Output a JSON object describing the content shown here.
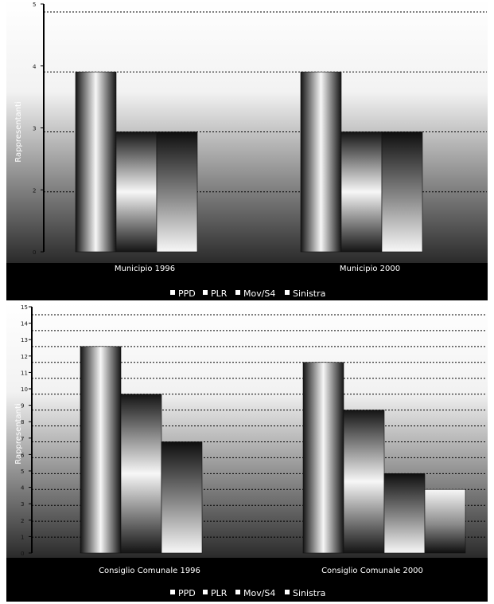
{
  "colors": {
    "background_top": "#ffffff",
    "background_bottom": "#2a2a2a",
    "gridline": "#000000",
    "legend_band": "#000000",
    "label_text": "#ffffff"
  },
  "chart_data": [
    {
      "type": "bar",
      "ylabel": "Rappresentanti",
      "categories": [
        "Municipio 1996",
        "Municipio 2000"
      ],
      "series": [
        {
          "name": "PPD",
          "values": [
            3,
            3
          ]
        },
        {
          "name": "PLR",
          "values": [
            2,
            2
          ]
        },
        {
          "name": "Mov/S4",
          "values": [
            2,
            2
          ]
        },
        {
          "name": "Sinistra",
          "values": [
            0,
            0
          ]
        }
      ],
      "ylim": [
        0,
        4
      ],
      "yticks": [
        "0",
        "2",
        "3",
        "4",
        "5"
      ],
      "grid": true,
      "legend": "bottom"
    },
    {
      "type": "bar",
      "ylabel": "Rappresentanti",
      "categories": [
        "Consiglio Comunale 1996",
        "Consiglio Comunale 2000"
      ],
      "series": [
        {
          "name": "PPD",
          "values": [
            13,
            12
          ]
        },
        {
          "name": "PLR",
          "values": [
            10,
            9
          ]
        },
        {
          "name": "Mov/S4",
          "values": [
            7,
            5
          ]
        },
        {
          "name": "Sinistra",
          "values": [
            0,
            4
          ]
        }
      ],
      "ylim": [
        0,
        15
      ],
      "yticks": [
        "0",
        "1",
        "2",
        "3",
        "4",
        "5",
        "6",
        "7",
        "8",
        "9",
        "10",
        "11",
        "12",
        "13",
        "14",
        "15"
      ],
      "grid": true,
      "legend": "bottom"
    }
  ]
}
